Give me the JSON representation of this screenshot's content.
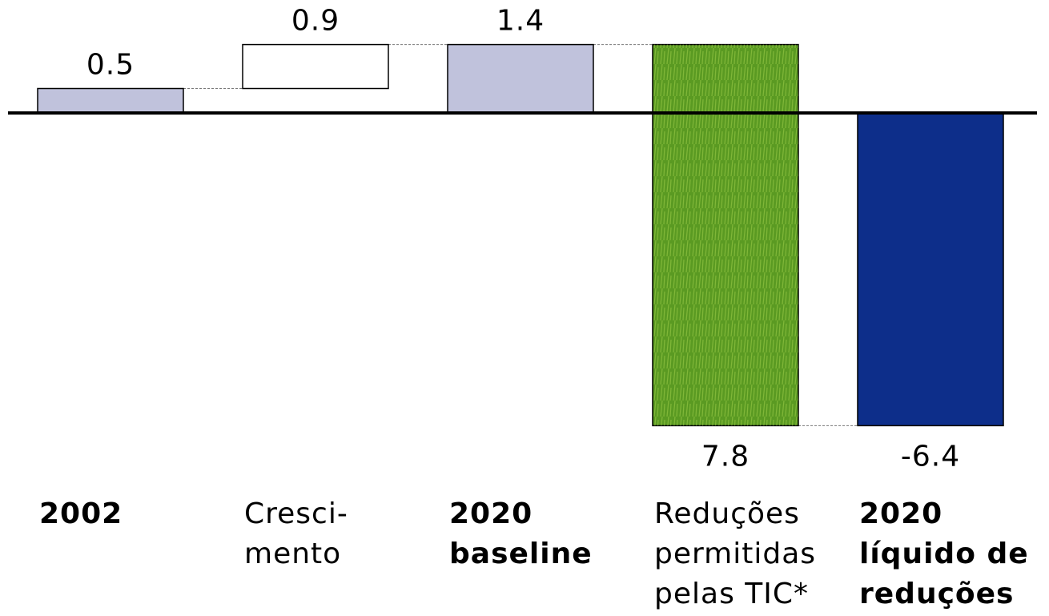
{
  "chart_data": {
    "type": "waterfall",
    "categories": [
      [
        "2002"
      ],
      [
        "Cresci-",
        "mento"
      ],
      [
        "2020",
        "baseline"
      ],
      [
        "Reduções",
        "permitidas",
        "pelas TIC*"
      ],
      [
        "2020",
        "líquido de",
        "reduções"
      ]
    ],
    "values": [
      0.5,
      0.9,
      1.4,
      -7.8,
      -6.4
    ],
    "value_labels": [
      "0.5",
      "0.9",
      "1.4",
      "7.8",
      "-6.4"
    ],
    "measures": [
      "total",
      "delta",
      "total",
      "delta",
      "total"
    ],
    "colors": [
      "#c0c2dc",
      "#ffffff",
      "#c0c2dc",
      "#5a9a22",
      "#0d2e8a"
    ],
    "bold_labels": [
      true,
      false,
      true,
      false,
      true
    ]
  }
}
